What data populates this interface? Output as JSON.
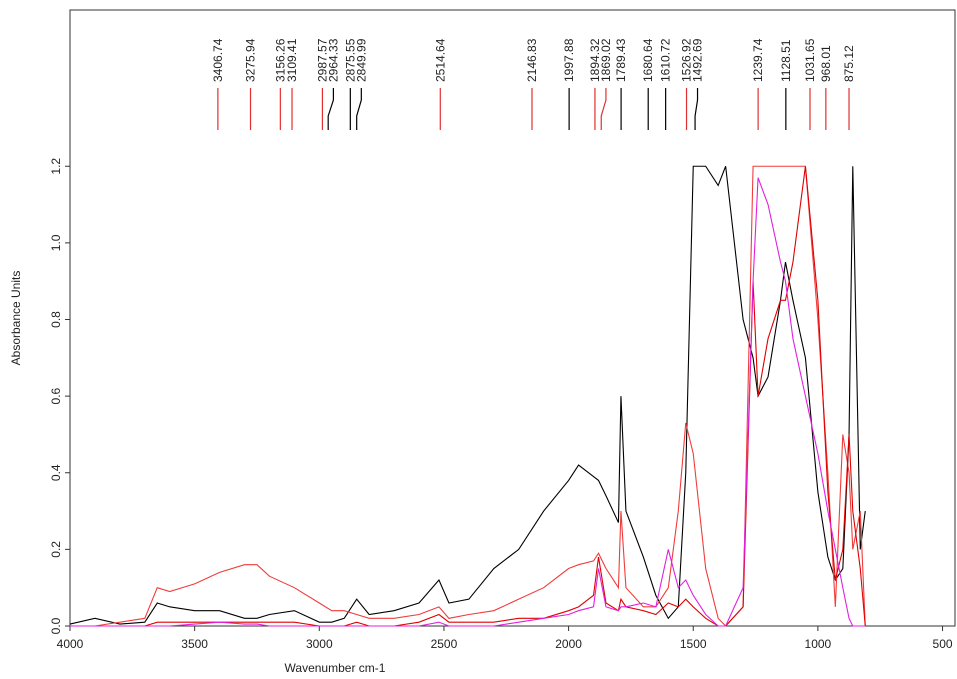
{
  "chart_data": {
    "type": "line",
    "xlabel": "Wavenumber cm-1",
    "ylabel": "Absorbance Units",
    "xlim": [
      4000,
      450
    ],
    "ylim": [
      0,
      1.6
    ],
    "xticks": [
      4000,
      3500,
      3000,
      2500,
      2000,
      1500,
      1000,
      500
    ],
    "yticks": [
      {
        "value": 0,
        "label": "0.0"
      },
      0.2,
      0.4,
      0.6,
      0.8,
      {
        "value": 1,
        "label": "1.0"
      },
      1.2
    ],
    "x": [
      4000,
      3900,
      3800,
      3700,
      3650,
      3600,
      3500,
      3400,
      3300,
      3250,
      3200,
      3100,
      3000,
      2950,
      2900,
      2850,
      2800,
      2700,
      2600,
      2520,
      2480,
      2400,
      2300,
      2200,
      2100,
      2000,
      1960,
      1900,
      1880,
      1850,
      1800,
      1790,
      1770,
      1700,
      1650,
      1600,
      1560,
      1530,
      1500,
      1450,
      1400,
      1370,
      1300,
      1260,
      1240,
      1200,
      1150,
      1130,
      1100,
      1050,
      1000,
      960,
      930,
      900,
      875,
      860,
      830,
      810
    ],
    "series": [
      {
        "color": "#000000",
        "values": [
          0.005,
          0.02,
          0.005,
          0.01,
          0.06,
          0.05,
          0.04,
          0.04,
          0.02,
          0.02,
          0.03,
          0.04,
          0.01,
          0.01,
          0.02,
          0.07,
          0.03,
          0.04,
          0.06,
          0.12,
          0.06,
          0.07,
          0.15,
          0.2,
          0.3,
          0.38,
          0.42,
          0.39,
          0.38,
          0.34,
          0.27,
          0.6,
          0.3,
          0.18,
          0.08,
          0.02,
          0.05,
          0.4,
          1.2,
          1.2,
          1.15,
          1.2,
          0.8,
          0.7,
          0.6,
          0.65,
          0.85,
          0.95,
          0.85,
          0.7,
          0.35,
          0.18,
          0.12,
          0.15,
          0.5,
          1.2,
          0.2,
          0.3
        ]
      },
      {
        "color": "#f03c3c",
        "values": [
          0,
          0,
          0.01,
          0.02,
          0.1,
          0.09,
          0.11,
          0.14,
          0.16,
          0.16,
          0.13,
          0.1,
          0.06,
          0.04,
          0.04,
          0.03,
          0.02,
          0.02,
          0.03,
          0.05,
          0.02,
          0.03,
          0.04,
          0.07,
          0.1,
          0.15,
          0.16,
          0.17,
          0.19,
          0.15,
          0.1,
          0.3,
          0.1,
          0.05,
          0.05,
          0.1,
          0.3,
          0.53,
          0.45,
          0.15,
          0.02,
          0,
          0.05,
          1.2,
          1.2,
          1.2,
          1.2,
          1.2,
          1.2,
          1.2,
          0.8,
          0.4,
          0.05,
          0.5,
          0.4,
          0.2,
          0.3,
          0
        ]
      },
      {
        "color": "#e00000",
        "values": [
          0,
          0,
          0,
          0,
          0.01,
          0.01,
          0.01,
          0.01,
          0.01,
          0.01,
          0.01,
          0.01,
          0,
          0,
          0,
          0.01,
          0,
          0,
          0.01,
          0.03,
          0.01,
          0.01,
          0.01,
          0.02,
          0.02,
          0.04,
          0.05,
          0.08,
          0.18,
          0.06,
          0.04,
          0.07,
          0.05,
          0.04,
          0.03,
          0.06,
          0.05,
          0.07,
          0.05,
          0.02,
          0,
          0,
          0.05,
          0.9,
          0.6,
          0.75,
          0.85,
          0.85,
          0.95,
          1.2,
          0.85,
          0.35,
          0.12,
          0.2,
          0.5,
          0.3,
          0.15,
          0
        ]
      },
      {
        "color": "#e020e0",
        "values": [
          0,
          0,
          0,
          0,
          0,
          0,
          0.005,
          0.01,
          0.005,
          0.005,
          0,
          0,
          0,
          0,
          0,
          0,
          0,
          0,
          0,
          0.01,
          0,
          0,
          0,
          0.01,
          0.02,
          0.03,
          0.04,
          0.05,
          0.15,
          0.05,
          0.04,
          0.05,
          0.05,
          0.06,
          0.05,
          0.2,
          0.1,
          0.12,
          0.08,
          0.03,
          0,
          0,
          0.1,
          0.9,
          1.17,
          1.1,
          0.95,
          0.9,
          0.75,
          0.6,
          0.45,
          0.3,
          0.2,
          0.1,
          0.02,
          0,
          0,
          0
        ]
      }
    ],
    "peaks": [
      {
        "value": 3406.74,
        "color": "#e03030"
      },
      {
        "value": 3275.94,
        "color": "#e03030"
      },
      {
        "value": 3156.26,
        "color": "#e03030"
      },
      {
        "value": 3109.41,
        "color": "#e03030"
      },
      {
        "value": 2987.57,
        "color": "#e03030"
      },
      {
        "value": 2964.33,
        "color": "#000000"
      },
      {
        "value": 2875.55,
        "color": "#000000"
      },
      {
        "value": 2849.99,
        "color": "#000000"
      },
      {
        "value": 2514.64,
        "color": "#e03030"
      },
      {
        "value": 2146.83,
        "color": "#e03030"
      },
      {
        "value": 1997.88,
        "color": "#000000"
      },
      {
        "value": 1894.32,
        "color": "#e03030"
      },
      {
        "value": 1869.02,
        "color": "#e03030"
      },
      {
        "value": 1789.43,
        "color": "#000000"
      },
      {
        "value": 1680.64,
        "color": "#000000"
      },
      {
        "value": 1610.72,
        "color": "#000000"
      },
      {
        "value": 1526.92,
        "color": "#e03030"
      },
      {
        "value": 1492.69,
        "color": "#000000"
      },
      {
        "value": 1239.74,
        "color": "#e03030"
      },
      {
        "value": 1128.51,
        "color": "#000000"
      },
      {
        "value": 1031.65,
        "color": "#e03030"
      },
      {
        "value": 968.01,
        "color": "#e03030"
      },
      {
        "value": 875.12,
        "color": "#e03030"
      }
    ]
  }
}
